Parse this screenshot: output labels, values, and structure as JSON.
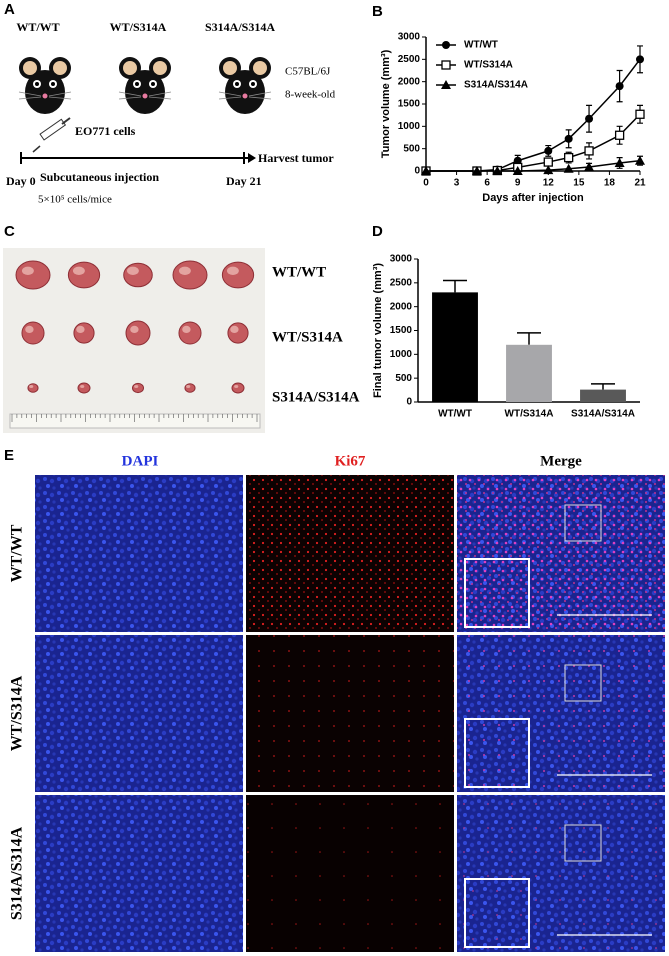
{
  "panel_labels": [
    "A",
    "B",
    "C",
    "D",
    "E"
  ],
  "panel_a": {
    "genotypes": [
      "WT/WT",
      "WT/S314A",
      "S314A/S314A"
    ],
    "strain": "C57BL/6J",
    "age": "8-week-old",
    "cells": "EO771 cells",
    "harvest": "Harvest tumor",
    "day_start": "Day 0",
    "day_end": "Day 21",
    "injection": "Subcutaneous injection",
    "dose": "5×10⁵ cells/mice"
  },
  "panel_c": {
    "labels": [
      "WT/WT",
      "WT/S314A",
      "S314A/S314A"
    ]
  },
  "panel_e": {
    "columns": [
      "DAPI",
      "Ki67",
      "Merge"
    ],
    "rows": [
      "WT/WT",
      "WT/S314A",
      "S314A/S314A"
    ]
  },
  "chart_data": [
    {
      "type": "line",
      "xlabel": "Days after injection",
      "ylabel": "Tumor volume (mm³)",
      "x": [
        0,
        5,
        7,
        9,
        12,
        14,
        16,
        19,
        21
      ],
      "series": [
        {
          "name": "WT/WT",
          "color": "#000000",
          "marker": "circle",
          "values": [
            0,
            0,
            30,
            230,
            450,
            720,
            1170,
            1900,
            2500
          ],
          "errors": [
            null,
            null,
            null,
            120,
            120,
            200,
            300,
            350,
            300
          ]
        },
        {
          "name": "WT/S314A",
          "color": "#000000",
          "marker": "open-square",
          "values": [
            0,
            0,
            10,
            80,
            200,
            300,
            450,
            800,
            1270
          ],
          "errors": [
            null,
            null,
            null,
            null,
            80,
            120,
            180,
            200,
            200
          ]
        },
        {
          "name": "S314A/S314A",
          "color": "#000000",
          "marker": "triangle",
          "values": [
            0,
            0,
            0,
            0,
            20,
            50,
            90,
            180,
            230
          ],
          "errors": [
            null,
            null,
            null,
            null,
            null,
            null,
            80,
            120,
            100
          ]
        }
      ],
      "xlim": [
        0,
        21
      ],
      "xticks": [
        0,
        3,
        6,
        9,
        12,
        15,
        18,
        21
      ],
      "ylim": [
        0,
        3000
      ],
      "yticks": [
        0,
        500,
        1000,
        1500,
        2000,
        2500,
        3000
      ],
      "legend": "upper left"
    },
    {
      "type": "bar",
      "ylabel": "Final tumor volume (mm³)",
      "categories": [
        "WT/WT",
        "WT/S314A",
        "S314A/S314A"
      ],
      "values": [
        2300,
        1200,
        260
      ],
      "errors": [
        250,
        250,
        120
      ],
      "colors": [
        "#000000",
        "#a7a7aa",
        "#595959"
      ],
      "ylim": [
        0,
        3000
      ],
      "yticks": [
        0,
        500,
        1000,
        1500,
        2000,
        2500,
        3000
      ]
    }
  ]
}
